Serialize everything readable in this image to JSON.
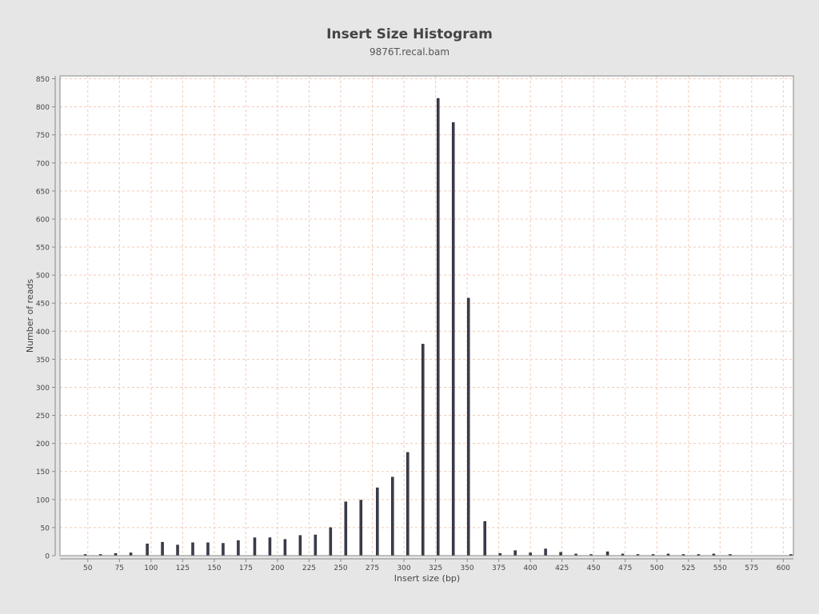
{
  "chart_data": {
    "type": "bar",
    "title": "Insert Size Histogram",
    "subtitle": "9876T.recal.bam",
    "xlabel": "Insert size (bp)",
    "ylabel": "Number of reads",
    "xlim": [
      28,
      608
    ],
    "ylim": [
      0,
      855
    ],
    "x_ticks": [
      50,
      75,
      100,
      125,
      150,
      175,
      200,
      225,
      250,
      275,
      300,
      325,
      350,
      375,
      400,
      425,
      450,
      475,
      500,
      525,
      550,
      575,
      600
    ],
    "y_ticks": [
      0,
      50,
      100,
      150,
      200,
      250,
      300,
      350,
      400,
      450,
      500,
      550,
      600,
      650,
      700,
      750,
      800,
      850
    ],
    "grid": true,
    "legend": "none",
    "x": [
      48,
      60,
      72,
      84,
      97,
      109,
      121,
      133,
      145,
      157,
      169,
      182,
      194,
      206,
      218,
      230,
      242,
      254,
      266,
      279,
      291,
      303,
      315,
      327,
      339,
      351,
      364,
      376,
      388,
      400,
      412,
      424,
      436,
      448,
      461,
      473,
      485,
      497,
      509,
      521,
      533,
      545,
      558,
      606
    ],
    "values": [
      2,
      2,
      4,
      5,
      21,
      24,
      19,
      23,
      23,
      22,
      27,
      32,
      32,
      29,
      36,
      37,
      50,
      96,
      99,
      121,
      140,
      184,
      377,
      815,
      772,
      459,
      61,
      4,
      9,
      5,
      12,
      6,
      3,
      2,
      7,
      3,
      2,
      2,
      3,
      2,
      2,
      3,
      2,
      2
    ],
    "colors": {
      "background": "#e6e6e6",
      "plot_area": "#ffffff",
      "grid": "#f2c9b4",
      "bar_fill": "#3d3d4d",
      "bar_stroke": "#1c1c28",
      "axis": "#888888",
      "text": "#444444"
    }
  }
}
